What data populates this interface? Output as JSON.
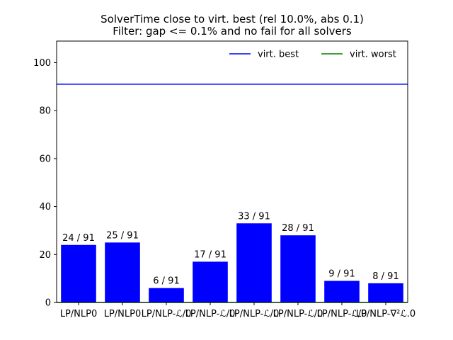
{
  "chart_data": {
    "type": "bar",
    "title_lines": [
      "SolverTime close to virt. best (rel 10.0%, abs 0.1)",
      "Filter: gap <= 0.1% and no fail for all solvers"
    ],
    "categories": [
      "LP/NLP0",
      "LP/NLP0",
      "LP/NLP-ℒ/0",
      "LP/NLP-ℒ/0",
      "LP/NLP-ℒ/0",
      "LP/NLP-ℒ/0",
      "LP/NLP-ℒ/0",
      "LP/NLP-∇²ℒ.0"
    ],
    "values": [
      24,
      25,
      6,
      17,
      33,
      28,
      9,
      8
    ],
    "data_labels": [
      "24 / 91",
      "25 / 91",
      "6 / 91",
      "17 / 91",
      "33 / 91",
      "28 / 91",
      "9 / 91",
      "8 / 91"
    ],
    "ylim": [
      0,
      109
    ],
    "yticks": [
      0,
      20,
      40,
      60,
      80,
      100
    ],
    "bar_color": "#0000ff",
    "lines": [
      {
        "name": "virt. best",
        "value": 91,
        "color": "#0000ff"
      },
      {
        "name": "virt. worst",
        "value": 0,
        "color": "#008000"
      }
    ],
    "legend_position": "top-right",
    "grid": false
  }
}
